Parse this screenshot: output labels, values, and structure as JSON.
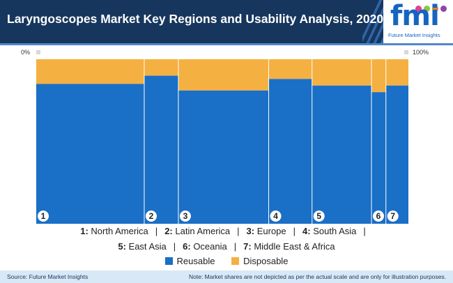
{
  "title": "Laryngoscopes Market Key Regions and Usability Analysis, 2020",
  "logo": {
    "text": "fmi",
    "subtitle": "Future Market Insights"
  },
  "axis": {
    "left_label": "0%",
    "right_label": "100%"
  },
  "colors": {
    "reusable": "#1a6fc6",
    "disposable": "#f5b042",
    "header": "#17365d"
  },
  "chart_data": {
    "type": "marimekko",
    "title": "Laryngoscopes Market Key Regions and Usability Analysis, 2020",
    "categories": [
      "1",
      "2",
      "3",
      "4",
      "5",
      "6",
      "7"
    ],
    "widths": [
      26.9,
      8.5,
      22.5,
      10.8,
      14.8,
      3.6,
      5.6
    ],
    "series": [
      {
        "name": "Reusable",
        "values": [
          85,
          90,
          81,
          88,
          84,
          80,
          84
        ]
      },
      {
        "name": "Disposable",
        "values": [
          15,
          10,
          19,
          12,
          16,
          20,
          16
        ]
      }
    ],
    "ylim": [
      0,
      100
    ]
  },
  "region_keys": [
    {
      "num": "1:",
      "name": "North America"
    },
    {
      "num": "2:",
      "name": "Latin America"
    },
    {
      "num": "3:",
      "name": "Europe"
    },
    {
      "num": "4:",
      "name": "South Asia"
    },
    {
      "num": "5:",
      "name": "East Asia"
    },
    {
      "num": "6:",
      "name": "Oceania"
    },
    {
      "num": "7:",
      "name": "Middle East & Africa"
    }
  ],
  "legend": {
    "reusable": "Reusable",
    "disposable": "Disposable"
  },
  "footer": {
    "source": "Source: Future Market Insights",
    "note": "Note: Market shares are not depicted as per the actual scale and are only for illustration purposes."
  }
}
